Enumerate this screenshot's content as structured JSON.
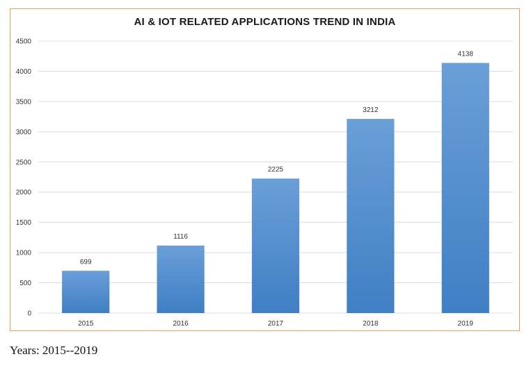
{
  "caption": "Years: 2015--2019",
  "colors": {
    "bar_top": "#6a9fd8",
    "bar_bottom": "#3f7fc4",
    "grid": "#dcdcdc",
    "frame": "#e0a060"
  },
  "chart_data": {
    "type": "bar",
    "title": "AI & IOT RELATED APPLICATIONS TREND IN INDIA",
    "xlabel": "",
    "ylabel": "",
    "categories": [
      "2015",
      "2016",
      "2017",
      "2018",
      "2019"
    ],
    "values": [
      699,
      1116,
      2225,
      3212,
      4138
    ],
    "data_labels": [
      "699",
      "1116",
      "2225",
      "3212",
      "4138"
    ],
    "ylim": [
      0,
      4500
    ],
    "yticks": [
      0,
      500,
      1000,
      1500,
      2000,
      2500,
      3000,
      3500,
      4000,
      4500
    ],
    "grid": true,
    "legend": "none"
  }
}
